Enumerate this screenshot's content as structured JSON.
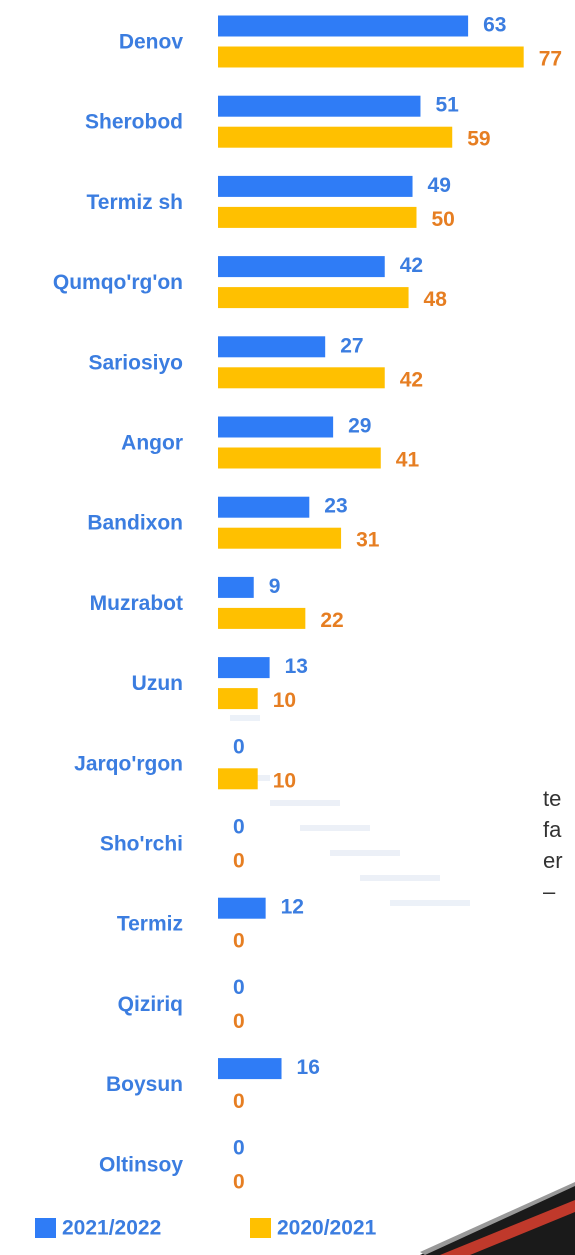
{
  "chart_data": {
    "type": "bar",
    "orientation": "horizontal",
    "categories": [
      "Denov",
      "Sherobod",
      "Termiz sh",
      "Qumqo'rg'on",
      "Sariosiyo",
      "Angor",
      "Bandixon",
      "Muzrabot",
      "Uzun",
      "Jarqo'rgon",
      "Sho'rchi",
      "Termiz",
      "Qiziriq",
      "Boysun",
      "Oltinsoy"
    ],
    "series": [
      {
        "name": "2021/2022",
        "color": "#2f7cf6",
        "label_color": "#3b7de0",
        "values": [
          63,
          51,
          49,
          42,
          27,
          29,
          23,
          9,
          13,
          0,
          0,
          12,
          0,
          16,
          0
        ]
      },
      {
        "name": "2020/2021",
        "color": "#ffc000",
        "label_color": "#e67e22",
        "values": [
          77,
          59,
          50,
          48,
          42,
          41,
          31,
          22,
          10,
          10,
          0,
          0,
          0,
          0,
          0
        ]
      }
    ],
    "legend": "bottom",
    "annotations": [
      "te",
      "fa",
      "er",
      "–"
    ]
  }
}
